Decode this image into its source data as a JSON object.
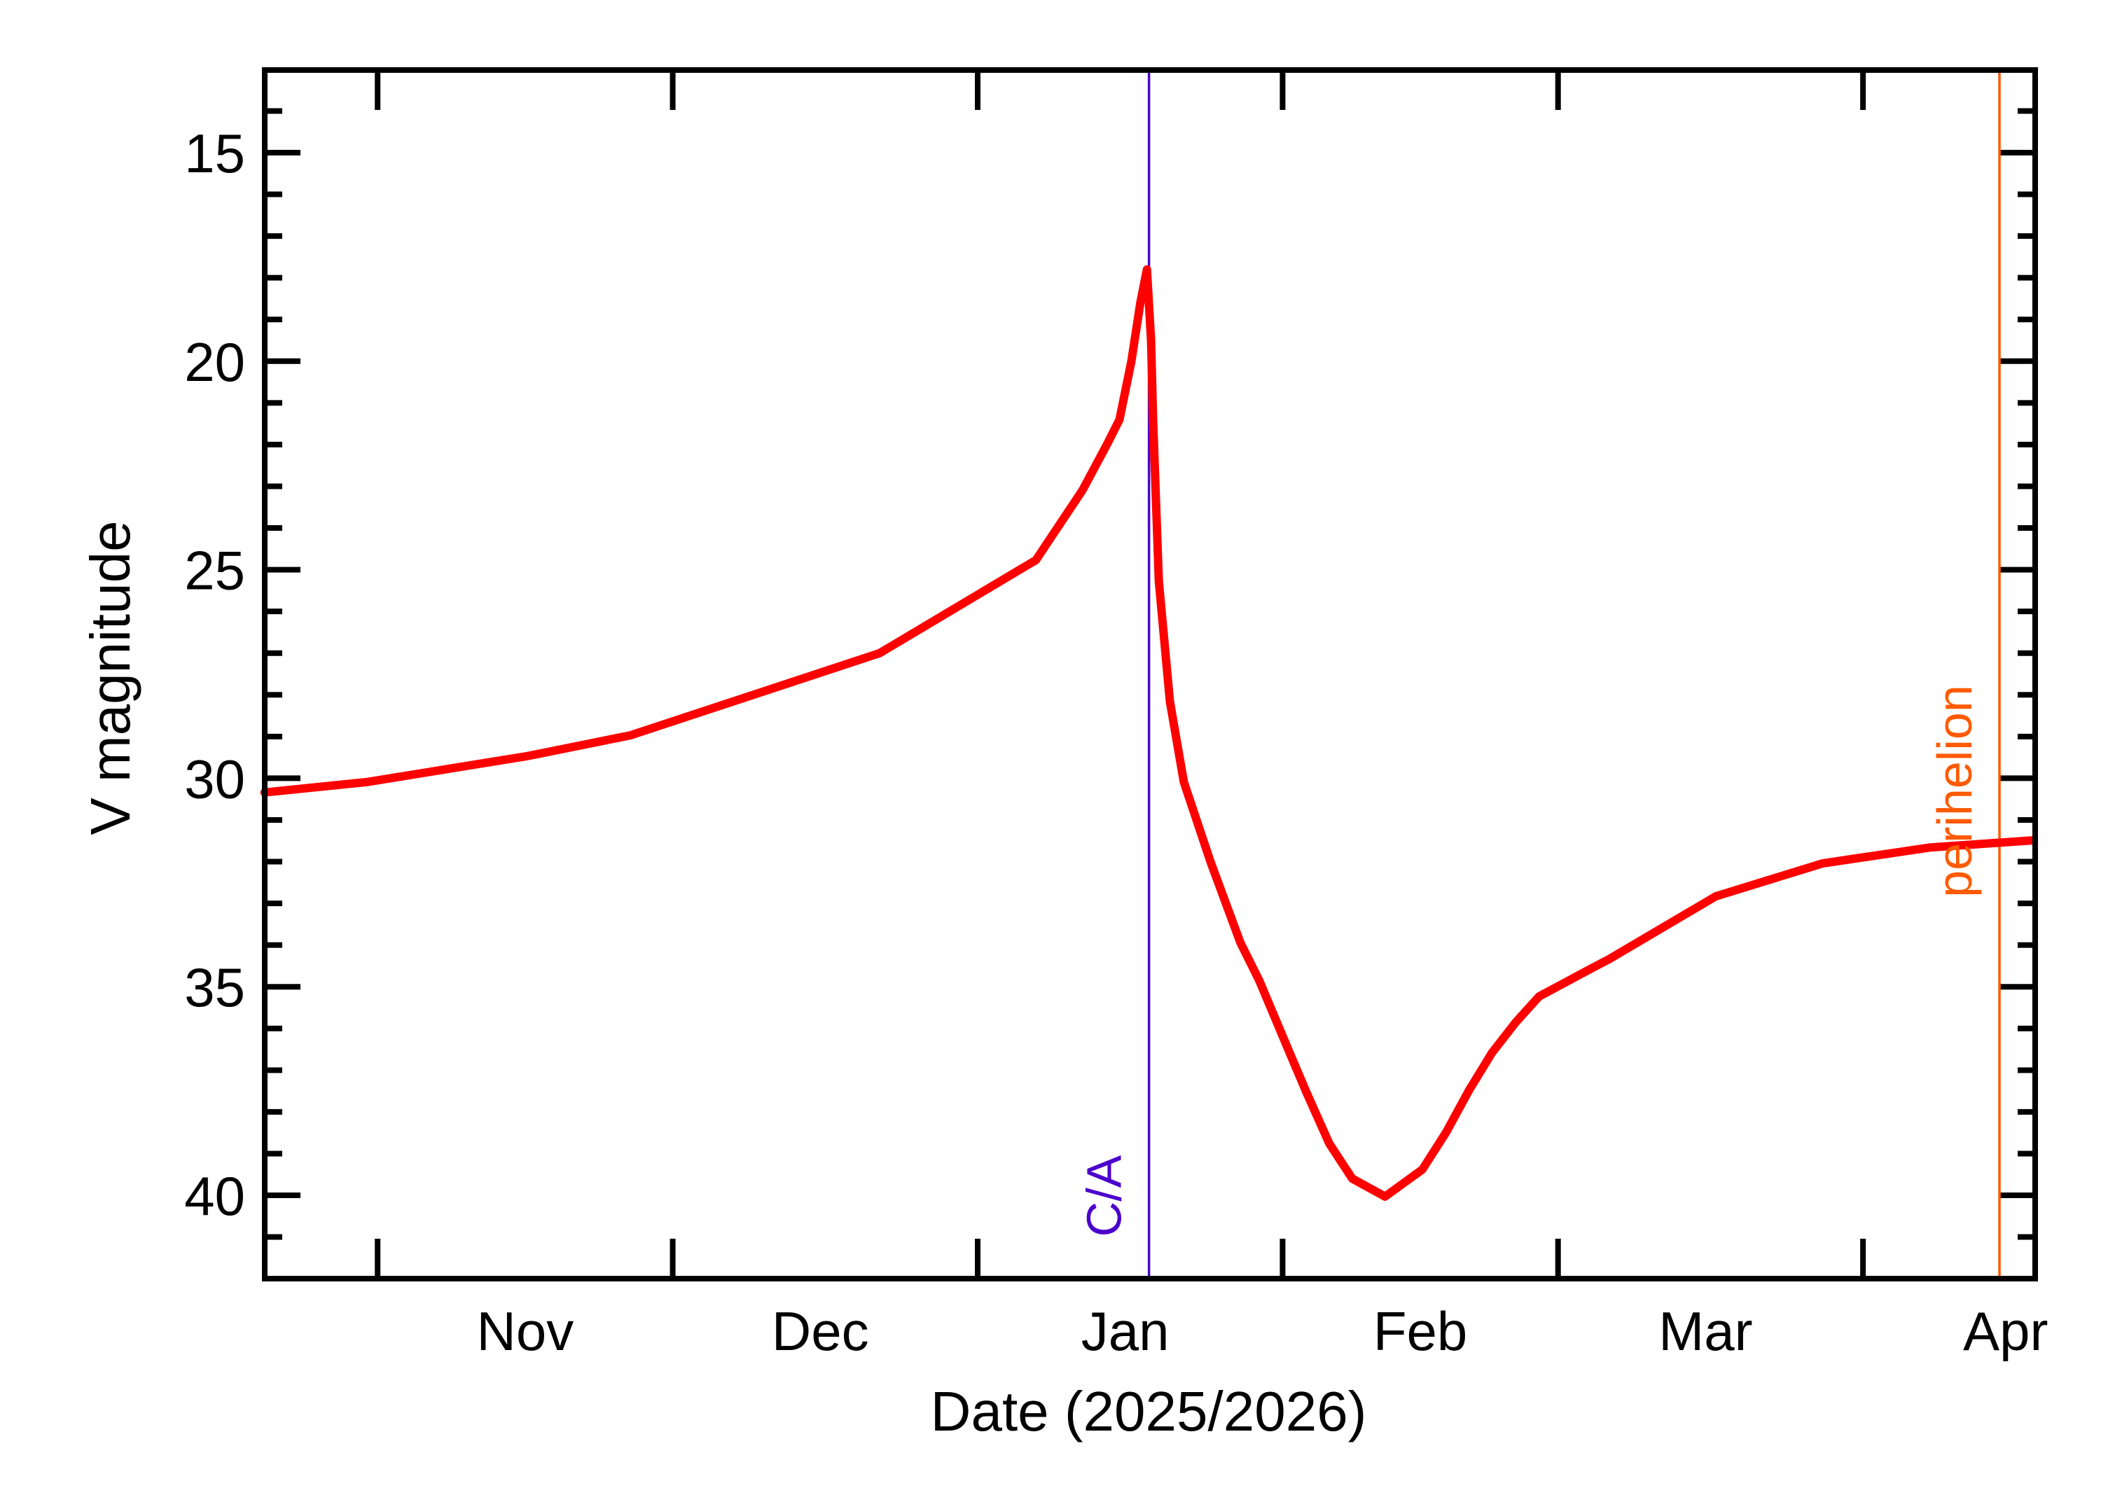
{
  "chart_data": {
    "type": "line",
    "title": "",
    "xlabel": "Date (2025/2026)",
    "ylabel": "V magnitude",
    "y_inverted": true,
    "ylim": [
      13,
      42
    ],
    "xlim": [
      "2025-10-20T12:00",
      "2026-04-18T06:00"
    ],
    "y_major_ticks": [
      15,
      20,
      25,
      30,
      35,
      40
    ],
    "y_minor_step": 1,
    "x_month_boundaries": [
      "2025-11-01",
      "2025-12-01",
      "2026-01-01",
      "2026-02-01",
      "2026-03-01",
      "2026-04-01"
    ],
    "x_tick_labels": [
      {
        "label": "Nov",
        "at": "2025-11-16"
      },
      {
        "label": "Dec",
        "at": "2025-12-16"
      },
      {
        "label": "Jan",
        "at": "2026-01-16"
      },
      {
        "label": "Feb",
        "at": "2026-02-15"
      },
      {
        "label": "Mar",
        "at": "2026-03-16"
      },
      {
        "label": "Apr",
        "at": "2026-04-15T12:00"
      }
    ],
    "grid": false,
    "legend": null,
    "series": [
      {
        "name": "V magnitude",
        "color": "#ff0000",
        "x": [
          "2025-10-20T12:00",
          "2025-10-30T22:00",
          "2025-11-16T05:00",
          "2025-11-26T17:00",
          "2025-12-22T01:00",
          "2025-12-31T14:00",
          "2026-01-06T22:00",
          "2026-01-11T16:00",
          "2026-01-14T05:00",
          "2026-01-15T10:00",
          "2026-01-16T15:00",
          "2026-01-17T13:00",
          "2026-01-18T05:00",
          "2026-01-18T15:00",
          "2026-01-18T20:00",
          "2026-01-19T10:00",
          "2026-01-20T13:00",
          "2026-01-21T23:00",
          "2026-01-24T16:00",
          "2026-01-27T17:00",
          "2026-01-29T15:00",
          "2026-02-01T12:00",
          "2026-02-03T10:00",
          "2026-02-05T18:00",
          "2026-02-08T02:00",
          "2026-02-11T10:00",
          "2026-02-15T05:00",
          "2026-02-17T15:00",
          "2026-02-19T23:00",
          "2026-02-22T07:00",
          "2026-02-24T17:00",
          "2026-02-27T02:00",
          "2026-03-03T20:00",
          "2026-03-06T04:00",
          "2026-03-17T01:00",
          "2026-03-27T22:00",
          "2026-04-07T19:00",
          "2026-04-18T06:00"
        ],
        "values": [
          30.34,
          30.09,
          29.47,
          28.97,
          27.0,
          25.66,
          24.77,
          23.09,
          21.97,
          21.4,
          20.0,
          18.6,
          17.8,
          19.5,
          21.4,
          25.28,
          28.16,
          30.09,
          32.0,
          33.94,
          34.85,
          36.46,
          37.53,
          38.76,
          39.6,
          40.03,
          39.38,
          38.49,
          37.48,
          36.58,
          35.85,
          35.23,
          34.63,
          34.34,
          32.83,
          32.04,
          31.66,
          31.49
        ]
      }
    ],
    "annotations": [
      {
        "name": "closest-approach",
        "label": "C/A",
        "at": "2026-01-18T10:00",
        "color": "#4c00cc"
      },
      {
        "name": "perihelion",
        "label": "perihelion",
        "at": "2026-04-14T21:00",
        "color": "#ff5a00"
      }
    ]
  }
}
